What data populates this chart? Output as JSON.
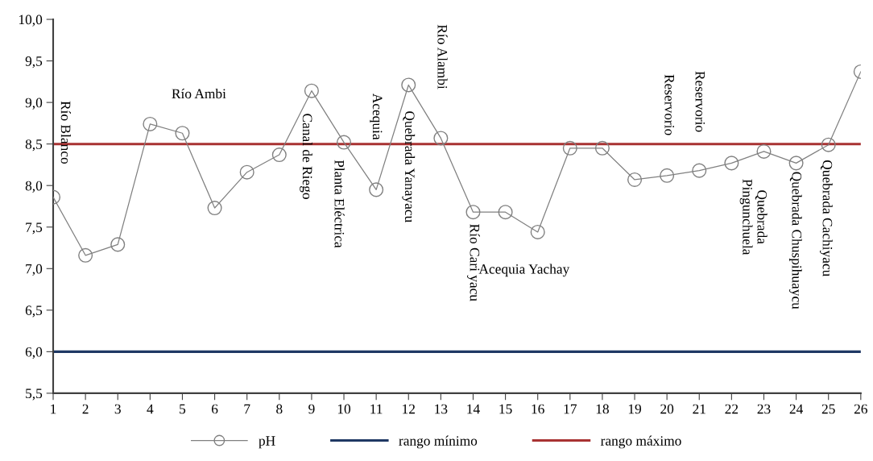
{
  "chart_data": {
    "type": "line",
    "x": [
      1,
      2,
      3,
      4,
      5,
      6,
      7,
      8,
      9,
      10,
      11,
      12,
      13,
      14,
      15,
      16,
      17,
      18,
      19,
      20,
      21,
      22,
      23,
      24,
      25,
      26
    ],
    "series": [
      {
        "name": "pH",
        "color": "#808080",
        "marker": "circle",
        "values": [
          7.86,
          7.16,
          7.29,
          8.74,
          8.63,
          7.73,
          8.16,
          8.37,
          9.14,
          8.52,
          7.95,
          9.21,
          8.57,
          7.68,
          7.68,
          7.44,
          8.45,
          8.45,
          8.07,
          8.12,
          8.18,
          8.27,
          8.41,
          8.27,
          8.49,
          9.37
        ]
      }
    ],
    "ref_lines": [
      {
        "axis": "y",
        "value": 6.0,
        "label": "rango mínimo",
        "color": "#1f3864"
      },
      {
        "axis": "y",
        "value": 8.5,
        "label": "rango máximo",
        "color": "#a83232"
      }
    ],
    "xlim": [
      1,
      26
    ],
    "xticks": [
      1,
      2,
      3,
      4,
      5,
      6,
      7,
      8,
      9,
      10,
      11,
      12,
      13,
      14,
      15,
      16,
      17,
      18,
      19,
      20,
      21,
      22,
      23,
      24,
      25,
      26
    ],
    "ylim": [
      5.5,
      10.0
    ],
    "yticks": [
      {
        "value": 5.5,
        "label": "5,5"
      },
      {
        "value": 6.0,
        "label": "6,0"
      },
      {
        "value": 6.5,
        "label": "6,5"
      },
      {
        "value": 7.0,
        "label": "7,0"
      },
      {
        "value": 7.5,
        "label": "7,5"
      },
      {
        "value": 8.0,
        "label": "8,0"
      },
      {
        "value": 8.5,
        "label": "8,5"
      },
      {
        "value": 9.0,
        "label": "9,0"
      },
      {
        "value": 9.5,
        "label": "9,5"
      },
      {
        "value": 10.0,
        "label": "10,0"
      }
    ],
    "annotations": [
      "Río Blanco",
      "Río Ambi",
      "Canal de Riego",
      "Planta Eléctrica",
      "Acequia",
      "Quebrada Yanayacu",
      "Río Alambi",
      "Río Cari yacu",
      "Acequia Yachay",
      "Reservorio",
      "Reservorio",
      "Quebrada\nPingunchuela",
      "Quebrada Chuspihuaycu",
      "Quebrada Cachiyacu"
    ],
    "grid": false,
    "legend": "bottom"
  }
}
